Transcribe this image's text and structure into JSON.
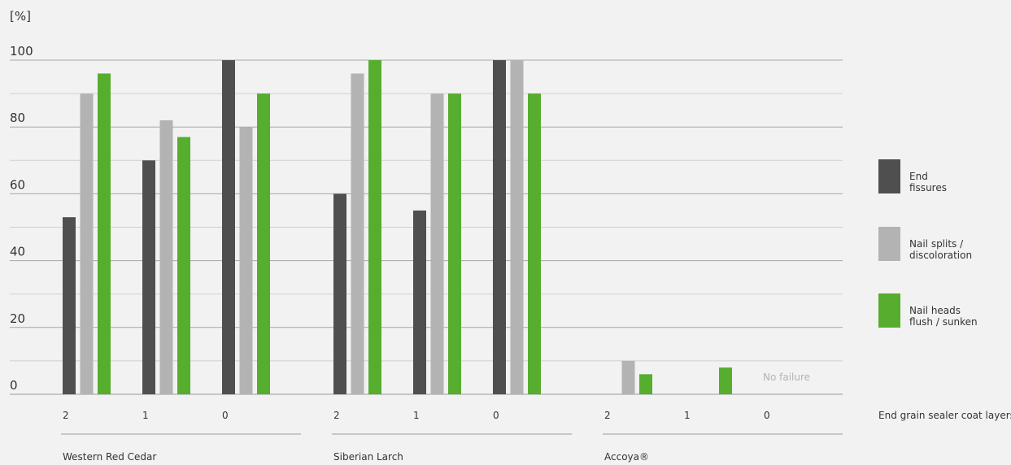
{
  "chart_data": {
    "type": "bar",
    "unit_label": "[%]",
    "ylim": [
      0,
      100
    ],
    "yticks": [
      0,
      20,
      40,
      60,
      80,
      100
    ],
    "grid": true,
    "x_axis_title": "End grain sealer coat layers",
    "groups": [
      {
        "name": "Western Red Cedar",
        "categories": [
          "2",
          "1",
          "0"
        ],
        "note": ""
      },
      {
        "name": "Siberian Larch",
        "categories": [
          "2",
          "1",
          "0"
        ],
        "note": ""
      },
      {
        "name": "Accoya®",
        "categories": [
          "2",
          "1",
          "0"
        ],
        "note": "No failure"
      }
    ],
    "series": [
      {
        "name": "End fissures",
        "legend_lines": [
          "End",
          "fissures"
        ],
        "color": "#4f4f4f",
        "values": [
          [
            53,
            70,
            100
          ],
          [
            60,
            55,
            100
          ],
          [
            0,
            0,
            0
          ]
        ]
      },
      {
        "name": "Nail splits / discoloration",
        "legend_lines": [
          "Nail splits /",
          "discoloration"
        ],
        "color": "#b3b3b3",
        "values": [
          [
            90,
            82,
            80
          ],
          [
            96,
            90,
            100
          ],
          [
            10,
            0,
            0
          ]
        ]
      },
      {
        "name": "Nail heads flush / sunken",
        "legend_lines": [
          "Nail heads",
          "flush / sunken"
        ],
        "color": "#56ad2e",
        "values": [
          [
            96,
            77,
            90
          ],
          [
            100,
            90,
            90
          ],
          [
            6,
            8,
            0
          ]
        ]
      }
    ],
    "legend_position": "right"
  }
}
